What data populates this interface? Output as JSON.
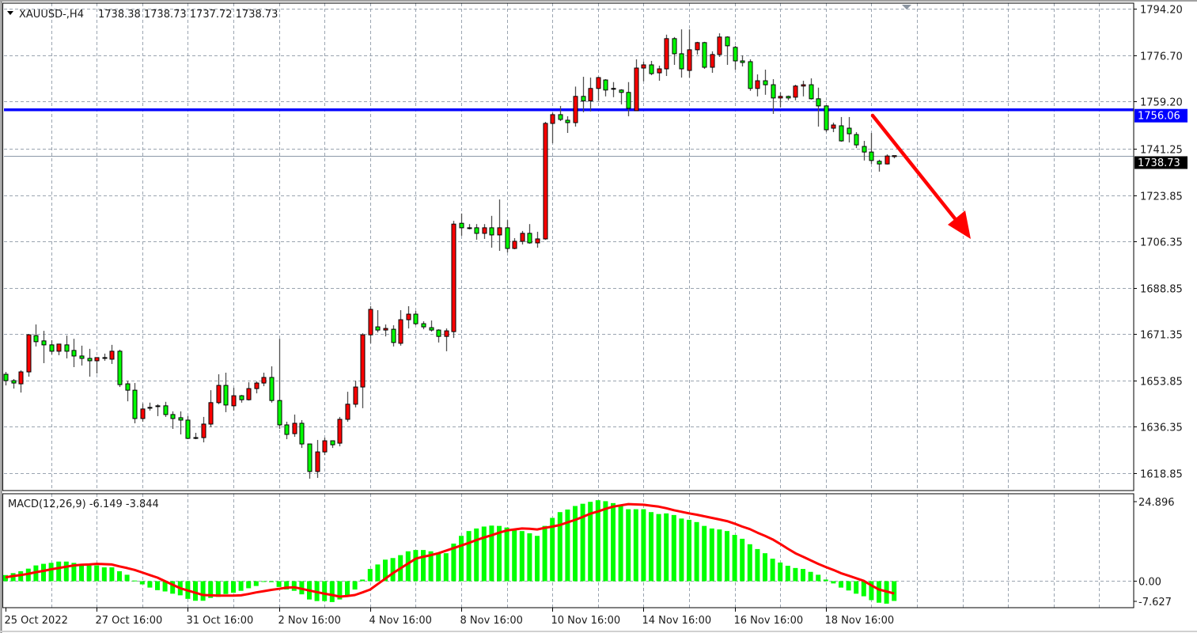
{
  "header": {
    "symbol": "XAUUSD-,H4",
    "ohlc": "1738.38 1738.73 1737.72 1738.73",
    "dropdown_icon": "triangle-down-icon"
  },
  "colors": {
    "bull_body": "#ff0000",
    "bear_body": "#00ff00",
    "wick": "#505050",
    "grid": "#9aa4b0",
    "level_line": "#0000ff",
    "arrow": "#ff0000",
    "macd_hist": "#00ff00",
    "macd_signal": "#ff0000",
    "last_price_bg": "#000000"
  },
  "price_axis": {
    "labels": [
      "1794.20",
      "1776.70",
      "1759.20",
      "1741.25",
      "1723.85",
      "1706.35",
      "1688.85",
      "1671.35",
      "1653.85",
      "1636.35",
      "1618.85"
    ],
    "level_label": "1756.06",
    "last_price_label": "1738.73"
  },
  "macd_panel": {
    "title": "MACD(12,26,9) -6.149 -3.844",
    "axis_labels": [
      "24.896",
      "0.00",
      "-7.627"
    ]
  },
  "time_axis": {
    "labels": [
      "25 Oct 2022",
      "27 Oct 16:00",
      "31 Oct 16:00",
      "2 Nov 16:00",
      "4 Nov 16:00",
      "8 Nov 16:00",
      "10 Nov 16:00",
      "14 Nov 16:00",
      "16 Nov 16:00",
      "18 Nov 16:00"
    ]
  },
  "chart_data": [
    {
      "type": "candlestick",
      "title": "XAUUSD-,H4",
      "timeframe": "H4",
      "ylim": [
        1614,
        1796
      ],
      "grid": true,
      "horizontal_level": 1756.06,
      "last_price": 1738.73,
      "annotation": "red down arrow (bearish projection)",
      "ohlc": [
        [
          1656.2,
          1657.1,
          1652.0,
          1653.8
        ],
        [
          1653.8,
          1654.4,
          1650.8,
          1652.9
        ],
        [
          1652.6,
          1657.7,
          1649.3,
          1657.1
        ],
        [
          1657.1,
          1671.4,
          1655.3,
          1671.1
        ],
        [
          1670.8,
          1675.0,
          1666.7,
          1668.5
        ],
        [
          1668.8,
          1672.6,
          1660.4,
          1667.3
        ],
        [
          1667.3,
          1669.1,
          1663.7,
          1664.9
        ],
        [
          1664.9,
          1667.6,
          1663.4,
          1667.6
        ],
        [
          1667.3,
          1670.8,
          1662.2,
          1664.9
        ],
        [
          1665.2,
          1669.6,
          1658.9,
          1663.1
        ],
        [
          1663.1,
          1667.0,
          1659.5,
          1662.2
        ],
        [
          1662.2,
          1665.8,
          1655.3,
          1661.3
        ],
        [
          1661.3,
          1662.5,
          1656.5,
          1662.5
        ],
        [
          1662.5,
          1664.0,
          1661.3,
          1662.2
        ],
        [
          1661.9,
          1667.3,
          1660.1,
          1664.9
        ],
        [
          1664.9,
          1665.5,
          1651.4,
          1652.3
        ],
        [
          1652.6,
          1653.8,
          1646.0,
          1650.2
        ],
        [
          1650.2,
          1652.9,
          1637.7,
          1639.5
        ],
        [
          1639.5,
          1645.2,
          1638.3,
          1643.1
        ],
        [
          1643.7,
          1645.5,
          1642.5,
          1643.4
        ],
        [
          1644.3,
          1644.9,
          1640.4,
          1644.0
        ],
        [
          1644.3,
          1645.8,
          1640.1,
          1641.0
        ],
        [
          1641.0,
          1642.2,
          1635.6,
          1639.5
        ],
        [
          1639.8,
          1642.2,
          1633.5,
          1638.9
        ],
        [
          1638.9,
          1640.4,
          1631.7,
          1632.0
        ],
        [
          1632.3,
          1634.1,
          1631.7,
          1632.0
        ],
        [
          1632.3,
          1640.1,
          1630.5,
          1637.4
        ],
        [
          1637.4,
          1650.2,
          1636.2,
          1645.5
        ],
        [
          1645.5,
          1656.2,
          1644.9,
          1652.0
        ],
        [
          1652.0,
          1656.8,
          1641.9,
          1644.6
        ],
        [
          1644.3,
          1651.1,
          1642.5,
          1648.1
        ],
        [
          1648.1,
          1648.4,
          1645.5,
          1646.6
        ],
        [
          1646.6,
          1653.2,
          1646.3,
          1650.8
        ],
        [
          1650.8,
          1653.5,
          1649.0,
          1652.9
        ],
        [
          1652.9,
          1656.8,
          1651.7,
          1655.0
        ],
        [
          1655.0,
          1659.2,
          1645.5,
          1646.3
        ],
        [
          1646.3,
          1669.6,
          1635.6,
          1637.1
        ],
        [
          1637.1,
          1638.3,
          1631.7,
          1633.5
        ],
        [
          1633.8,
          1641.0,
          1632.6,
          1637.7
        ],
        [
          1637.7,
          1638.9,
          1628.4,
          1629.9
        ],
        [
          1629.9,
          1629.9,
          1616.8,
          1619.5
        ],
        [
          1619.5,
          1631.4,
          1617.1,
          1626.9
        ],
        [
          1626.9,
          1632.3,
          1625.7,
          1631.1
        ],
        [
          1631.1,
          1631.1,
          1628.4,
          1629.6
        ],
        [
          1630.2,
          1640.1,
          1629.0,
          1639.2
        ],
        [
          1639.2,
          1649.6,
          1638.3,
          1644.9
        ],
        [
          1644.9,
          1653.8,
          1643.7,
          1651.4
        ],
        [
          1651.4,
          1671.7,
          1643.4,
          1671.1
        ],
        [
          1671.1,
          1681.9,
          1667.9,
          1680.7
        ],
        [
          1674.1,
          1680.4,
          1672.0,
          1672.9
        ],
        [
          1672.9,
          1675.0,
          1670.5,
          1673.5
        ],
        [
          1673.2,
          1674.7,
          1666.7,
          1668.2
        ],
        [
          1667.9,
          1680.4,
          1667.0,
          1676.8
        ],
        [
          1676.8,
          1681.9,
          1673.5,
          1678.9
        ],
        [
          1678.9,
          1680.1,
          1674.7,
          1675.3
        ],
        [
          1675.3,
          1676.2,
          1673.2,
          1674.1
        ],
        [
          1673.8,
          1676.5,
          1672.3,
          1672.9
        ],
        [
          1672.9,
          1673.2,
          1668.2,
          1670.5
        ],
        [
          1670.5,
          1673.5,
          1664.9,
          1672.6
        ],
        [
          1672.3,
          1714.1,
          1669.9,
          1712.9
        ],
        [
          1713.2,
          1716.9,
          1708.5,
          1711.5
        ],
        [
          1711.5,
          1712.9,
          1710.9,
          1711.4
        ],
        [
          1711.5,
          1712.9,
          1707.0,
          1709.4
        ],
        [
          1709.4,
          1712.9,
          1707.3,
          1711.5
        ],
        [
          1711.5,
          1716.0,
          1704.0,
          1708.8
        ],
        [
          1708.8,
          1722.2,
          1702.8,
          1711.5
        ],
        [
          1711.5,
          1714.4,
          1702.2,
          1703.7
        ],
        [
          1703.7,
          1707.6,
          1703.4,
          1706.4
        ],
        [
          1706.4,
          1710.3,
          1705.2,
          1709.4
        ],
        [
          1709.4,
          1712.9,
          1705.5,
          1705.8
        ],
        [
          1705.8,
          1710.0,
          1704.0,
          1707.3
        ],
        [
          1707.3,
          1751.5,
          1707.0,
          1750.9
        ],
        [
          1750.9,
          1755.1,
          1743.4,
          1754.2
        ],
        [
          1754.2,
          1757.5,
          1751.8,
          1752.4
        ],
        [
          1752.1,
          1753.6,
          1747.3,
          1751.2
        ],
        [
          1751.2,
          1764.8,
          1749.7,
          1761.1
        ],
        [
          1761.1,
          1768.5,
          1755.1,
          1759.4
        ],
        [
          1759.4,
          1768.2,
          1755.4,
          1764.1
        ],
        [
          1764.1,
          1768.5,
          1759.4,
          1768.2
        ],
        [
          1767.3,
          1767.6,
          1761.1,
          1763.5
        ],
        [
          1764.1,
          1766.5,
          1760.8,
          1763.8
        ],
        [
          1763.5,
          1763.8,
          1758.1,
          1762.6
        ],
        [
          1762.6,
          1766.5,
          1753.6,
          1756.6
        ],
        [
          1755.7,
          1775.1,
          1755.7,
          1771.8
        ],
        [
          1771.8,
          1774.2,
          1766.8,
          1773.0
        ],
        [
          1773.0,
          1774.5,
          1769.1,
          1769.7
        ],
        [
          1770.0,
          1772.7,
          1767.0,
          1771.5
        ],
        [
          1771.5,
          1784.4,
          1768.8,
          1782.9
        ],
        [
          1782.9,
          1783.5,
          1773.0,
          1777.2
        ],
        [
          1777.2,
          1786.4,
          1768.2,
          1771.5
        ],
        [
          1770.9,
          1786.4,
          1768.2,
          1778.7
        ],
        [
          1778.7,
          1781.7,
          1776.9,
          1781.4
        ],
        [
          1781.4,
          1781.7,
          1771.5,
          1772.1
        ],
        [
          1772.1,
          1778.1,
          1770.0,
          1776.9
        ],
        [
          1776.9,
          1784.9,
          1776.0,
          1783.5
        ],
        [
          1783.5,
          1783.8,
          1773.0,
          1780.2
        ],
        [
          1779.6,
          1780.2,
          1771.2,
          1774.5
        ],
        [
          1774.5,
          1776.6,
          1772.4,
          1773.9
        ],
        [
          1774.2,
          1775.1,
          1763.2,
          1764.1
        ],
        [
          1764.1,
          1769.4,
          1761.1,
          1767.0
        ],
        [
          1767.0,
          1771.2,
          1761.7,
          1765.5
        ],
        [
          1765.5,
          1767.6,
          1754.5,
          1760.5
        ],
        [
          1760.5,
          1762.6,
          1756.9,
          1761.1
        ],
        [
          1761.1,
          1761.4,
          1759.6,
          1760.5
        ],
        [
          1760.8,
          1765.5,
          1759.6,
          1765.0
        ],
        [
          1765.0,
          1767.0,
          1761.1,
          1765.5
        ],
        [
          1765.5,
          1767.9,
          1759.9,
          1760.2
        ],
        [
          1760.2,
          1764.4,
          1749.7,
          1757.5
        ],
        [
          1757.5,
          1757.8,
          1747.6,
          1748.5
        ],
        [
          1749.1,
          1751.2,
          1747.6,
          1750.3
        ],
        [
          1750.0,
          1753.3,
          1744.0,
          1744.3
        ],
        [
          1749.1,
          1753.3,
          1743.7,
          1747.0
        ],
        [
          1746.7,
          1747.6,
          1741.6,
          1742.8
        ],
        [
          1742.2,
          1744.3,
          1736.9,
          1740.1
        ],
        [
          1740.1,
          1747.3,
          1735.6,
          1736.9
        ],
        [
          1736.6,
          1737.2,
          1732.7,
          1735.6
        ],
        [
          1735.6,
          1739.2,
          1735.4,
          1738.6
        ],
        [
          1738.38,
          1738.73,
          1737.72,
          1738.73
        ]
      ]
    },
    {
      "type": "bar+line",
      "title": "MACD(12,26,9)",
      "ylim": [
        -7.627,
        24.896
      ],
      "macd": [
        1.9,
        2.5,
        3.1,
        3.9,
        4.9,
        5.4,
        5.7,
        6.1,
        6.1,
        5.7,
        5.2,
        4.9,
        4.9,
        4.3,
        4.3,
        3.1,
        2.0,
        0.2,
        -1.0,
        -2.0,
        -2.8,
        -3.2,
        -3.9,
        -4.4,
        -5.5,
        -6.1,
        -6.1,
        -5.2,
        -4.9,
        -4.0,
        -3.6,
        -3.0,
        -2.2,
        -1.5,
        -0.2,
        -0.3,
        -1.8,
        -2.6,
        -3.0,
        -4.1,
        -5.7,
        -6.2,
        -6.2,
        -6.5,
        -5.7,
        -4.5,
        -2.6,
        0.5,
        3.8,
        5.2,
        6.7,
        7.2,
        8.1,
        9.3,
        9.7,
        9.7,
        9.3,
        8.7,
        8.7,
        11.7,
        14.1,
        15.6,
        16.4,
        17.0,
        17.3,
        17.2,
        16.7,
        16.2,
        15.6,
        14.9,
        14.1,
        17.2,
        19.7,
        21.5,
        22.3,
        23.4,
        24.1,
        24.7,
        25.2,
        24.9,
        24.3,
        23.6,
        22.4,
        22.4,
        22.4,
        21.5,
        20.9,
        21.1,
        20.6,
        19.5,
        19.1,
        18.4,
        17.2,
        16.4,
        16.1,
        15.6,
        14.4,
        13.2,
        11.5,
        10.0,
        8.7,
        7.0,
        5.8,
        4.8,
        4.1,
        3.8,
        2.9,
        2.0,
        0.5,
        -0.7,
        -2.0,
        -2.9,
        -3.9,
        -4.7,
        -5.9,
        -6.7,
        -7.0,
        -6.149
      ],
      "signal": [
        1.2,
        1.6,
        1.9,
        2.3,
        2.8,
        3.2,
        3.7,
        4.1,
        4.5,
        4.9,
        5.1,
        5.2,
        5.4,
        5.3,
        5.2,
        4.6,
        4.1,
        3.5,
        2.7,
        1.9,
        1.1,
        0.0,
        -1.1,
        -2.2,
        -2.9,
        -3.6,
        -4.3,
        -4.4,
        -4.5,
        -4.5,
        -4.5,
        -4.4,
        -4.0,
        -3.5,
        -3.1,
        -2.7,
        -2.4,
        -2.0,
        -1.9,
        -2.4,
        -2.9,
        -3.4,
        -3.9,
        -4.3,
        -4.8,
        -4.6,
        -4.3,
        -3.5,
        -2.6,
        -0.9,
        0.8,
        2.5,
        4.0,
        5.5,
        7.0,
        7.6,
        8.1,
        8.7,
        9.5,
        10.3,
        11.1,
        11.9,
        12.8,
        13.6,
        14.3,
        15.1,
        15.8,
        16.1,
        16.4,
        16.3,
        16.1,
        16.6,
        17.0,
        17.5,
        18.3,
        19.1,
        20.0,
        21.0,
        21.7,
        22.5,
        23.2,
        23.6,
        24.0,
        23.9,
        23.8,
        23.5,
        23.2,
        22.7,
        22.1,
        21.6,
        21.1,
        20.7,
        20.2,
        19.7,
        19.2,
        18.7,
        17.9,
        17.0,
        16.2,
        15.1,
        14.1,
        13.0,
        11.6,
        10.1,
        8.7,
        7.6,
        6.5,
        5.4,
        4.4,
        3.5,
        2.5,
        1.7,
        0.9,
        0.1,
        -1.3,
        -2.6,
        -3.2,
        -3.844
      ]
    }
  ]
}
